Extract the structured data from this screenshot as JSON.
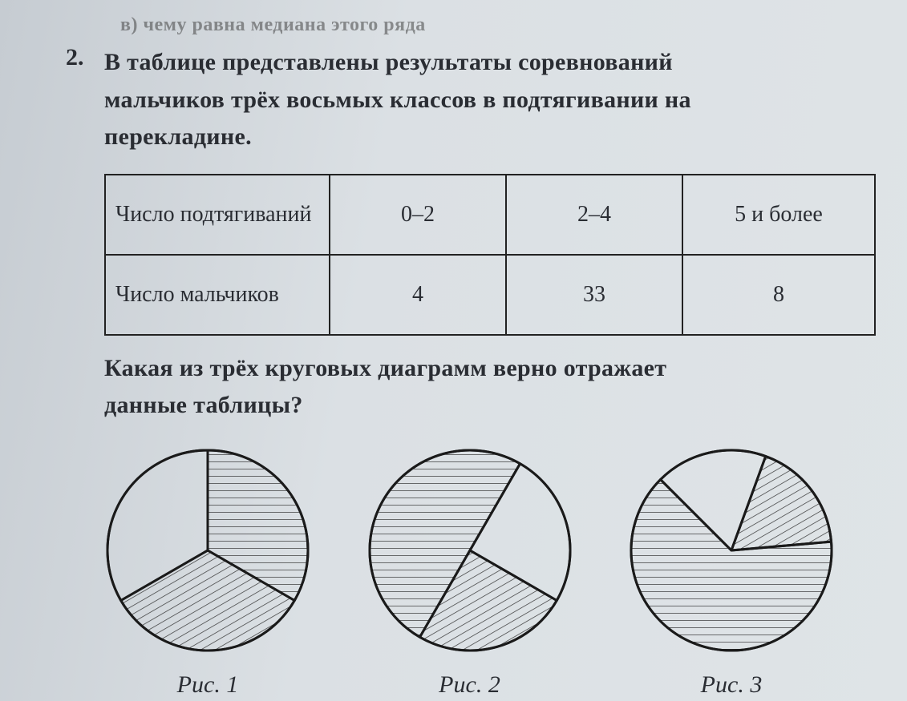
{
  "top_fragment": "в)   чему равна медиана этого ряда",
  "question_number": "2.",
  "question_text_lines": [
    "В таблице представлены результаты соревнований",
    "мальчиков трёх восьмых классов в подтягивании на",
    "перекладине."
  ],
  "table": {
    "columns_width_class": [
      "c0",
      "c1",
      "c2",
      "c3"
    ],
    "rows": [
      {
        "header": "Число подтягиваний",
        "cells": [
          "0–2",
          "2–4",
          "5 и более"
        ]
      },
      {
        "header": "Число мальчиков",
        "cells": [
          "4",
          "33",
          "8"
        ]
      }
    ]
  },
  "followup_lines": [
    "Какая из трёх круговых диаграмм верно отражает",
    "данные таблицы?"
  ],
  "pies": {
    "radius": 125,
    "stroke": "#1a1a1a",
    "stroke_width": 3,
    "hatch": {
      "horiz_id": "hatch-h",
      "diag_id": "hatch-d",
      "spacing": 9,
      "line_color": "#333",
      "line_width": 1.4
    },
    "items": [
      {
        "caption": "Рис. 1",
        "slices": [
          {
            "start_deg": -90,
            "end_deg": 30,
            "fill": "url(#hatch-h)"
          },
          {
            "start_deg": 30,
            "end_deg": 150,
            "fill": "url(#hatch-d)"
          },
          {
            "start_deg": 150,
            "end_deg": 270,
            "fill": "none"
          }
        ]
      },
      {
        "caption": "Рис. 2",
        "slices": [
          {
            "start_deg": -60,
            "end_deg": 30,
            "fill": "none"
          },
          {
            "start_deg": 30,
            "end_deg": 120,
            "fill": "url(#hatch-d)"
          },
          {
            "start_deg": 120,
            "end_deg": 300,
            "fill": "url(#hatch-h)"
          }
        ]
      },
      {
        "caption": "Рис. 3",
        "slices": [
          {
            "start_deg": -70,
            "end_deg": -5,
            "fill": "url(#hatch-d)"
          },
          {
            "start_deg": -5,
            "end_deg": 225,
            "fill": "url(#hatch-h)"
          },
          {
            "start_deg": 225,
            "end_deg": 290,
            "fill": "none"
          }
        ]
      }
    ]
  }
}
